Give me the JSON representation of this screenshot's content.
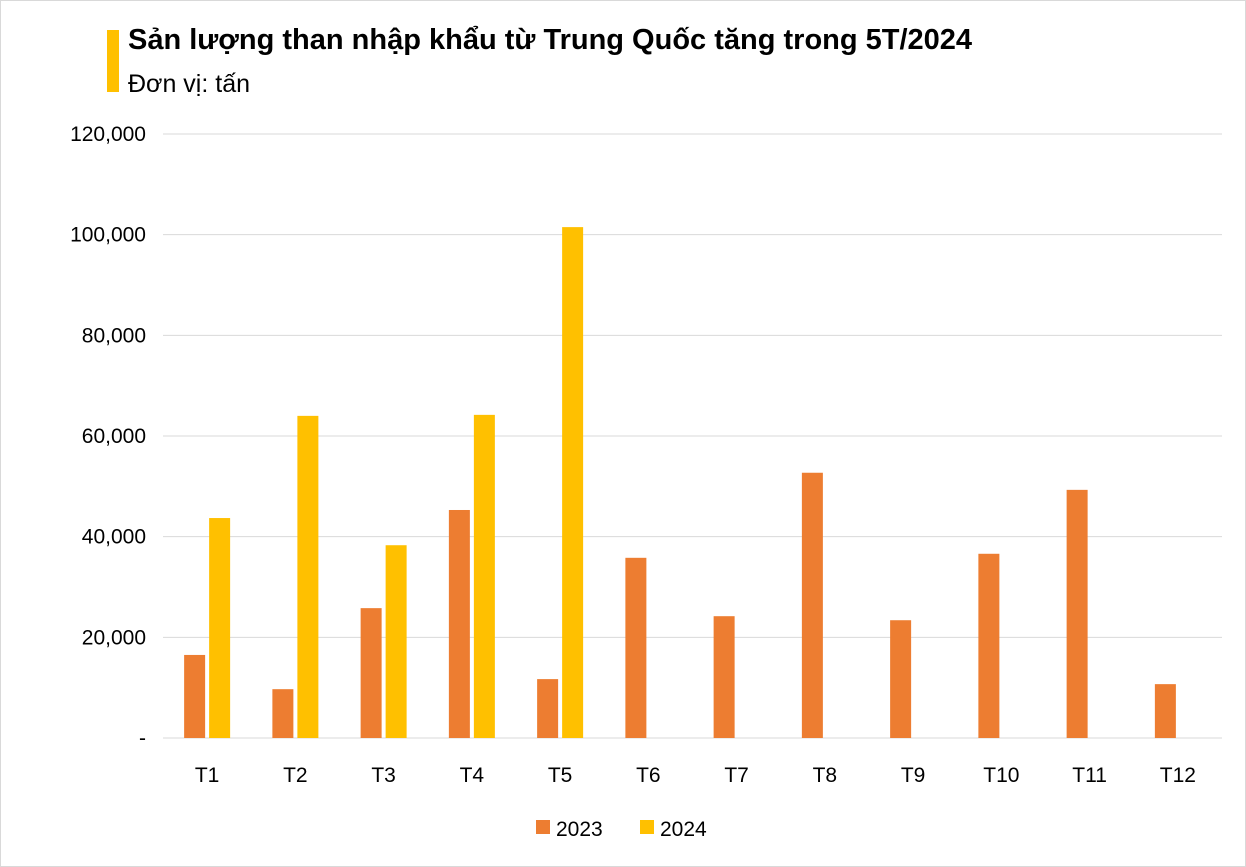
{
  "chart_data": {
    "type": "bar",
    "title": "Sản lượng than nhập khẩu từ Trung Quốc tăng trong 5T/2024",
    "subtitle": "Đơn vị: tấn",
    "categories": [
      "T1",
      "T2",
      "T3",
      "T4",
      "T5",
      "T6",
      "T7",
      "T8",
      "T9",
      "T10",
      "T11",
      "T12"
    ],
    "series": [
      {
        "name": "2023",
        "color": "#ED7D31",
        "values": [
          16500,
          9700,
          25800,
          45300,
          11700,
          35800,
          24200,
          52700,
          23400,
          36600,
          49300,
          10700
        ]
      },
      {
        "name": "2024",
        "color": "#FFC000",
        "values": [
          43700,
          64000,
          38300,
          64200,
          101500,
          null,
          null,
          null,
          null,
          null,
          null,
          null
        ]
      }
    ],
    "ylim": [
      0,
      120000
    ],
    "yticks": [
      0,
      20000,
      40000,
      60000,
      80000,
      100000,
      120000
    ],
    "ytick_labels": [
      "-",
      "20,000",
      "40,000",
      "60,000",
      "80,000",
      "100,000",
      "120,000"
    ],
    "grid": true,
    "legend_placement": "bottom",
    "accent_color": "#FFC000"
  }
}
